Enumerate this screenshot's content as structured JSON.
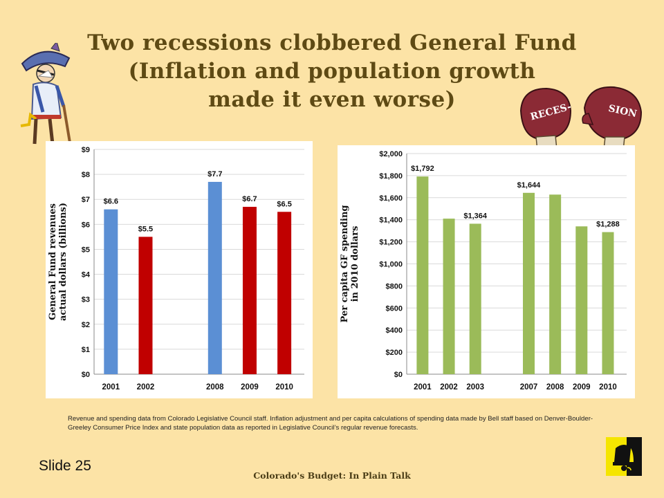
{
  "title": {
    "line1": "Two recessions clobbered General Fund",
    "line2": "(Inflation and population growth",
    "line3": "made it even worse)"
  },
  "chart_data": [
    {
      "type": "bar",
      "ylabel": "General Fund revenues actual dollars (billions)",
      "ylabel_lines": [
        "General Fund revenues",
        "actual dollars (billions)"
      ],
      "categories": [
        "2001",
        "2002",
        "2008",
        "2009",
        "2010"
      ],
      "values": [
        6.6,
        5.5,
        7.7,
        6.7,
        6.5
      ],
      "value_labels": [
        "$6.6",
        "$5.5",
        "$7.7",
        "$6.7",
        "$6.5"
      ],
      "colors": [
        "#5b8fd4",
        "#c00000",
        "#5b8fd4",
        "#c00000",
        "#c00000"
      ],
      "ylim": [
        0,
        9
      ],
      "yticks": [
        "$0",
        "$1",
        "$2",
        "$3",
        "$4",
        "$5",
        "$6",
        "$7",
        "$8",
        "$9"
      ],
      "grid": true
    },
    {
      "type": "bar",
      "ylabel": "Per capita GF spending in 2010 dollars",
      "ylabel_lines": [
        "Per capita GF spending",
        "in 2010 dollars"
      ],
      "categories": [
        "2001",
        "2002",
        "2003",
        "2007",
        "2008",
        "2009",
        "2010"
      ],
      "values": [
        1792,
        1410,
        1364,
        1644,
        1628,
        1340,
        1288
      ],
      "value_labels": [
        "$1,792",
        "",
        "$1,364",
        "$1,644",
        "",
        "",
        "$1,288"
      ],
      "colors": [
        "#9bbb59",
        "#9bbb59",
        "#9bbb59",
        "#9bbb59",
        "#9bbb59",
        "#9bbb59",
        "#9bbb59"
      ],
      "ylim": [
        0,
        2000
      ],
      "yticks": [
        "$0",
        "$200",
        "$400",
        "$600",
        "$800",
        "$1,000",
        "$1,200",
        "$1,400",
        "$1,600",
        "$1,800",
        "$2,000"
      ],
      "grid": true
    }
  ],
  "boxing_gloves": {
    "left_text": "RECES-",
    "right_text": "SION"
  },
  "footnote": "Revenue and spending data from Colorado Legislative Council staff. Inflation adjustment and per capita calculations of spending data made by Bell staff based on Denver-Boulder-Greeley Consumer Price Index and state population data as reported in Legislative Council’s regular revenue forecasts.",
  "slide_label": "Slide  25",
  "footer": "Colorado's Budget: In Plain Talk",
  "colors": {
    "background": "#fce3a6",
    "title": "#5e4a14",
    "chart_bg": "#ffffff"
  }
}
